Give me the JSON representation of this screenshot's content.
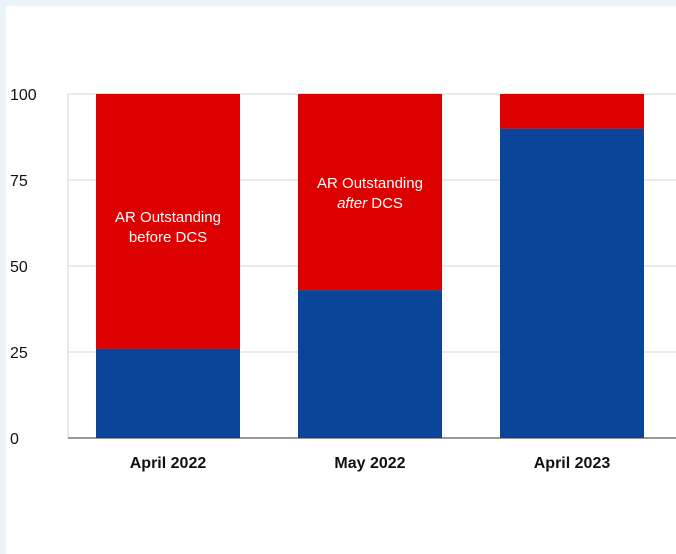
{
  "chart_data": {
    "type": "bar",
    "stacked": true,
    "categories": [
      "April 2022",
      "May 2022",
      "April 2023"
    ],
    "series": [
      {
        "values": [
          26,
          43,
          90
        ],
        "color": "#0b4599"
      },
      {
        "values": [
          74,
          57,
          10
        ],
        "color": "#dc0000"
      }
    ],
    "ylim": [
      0,
      100
    ],
    "yticks": [
      0,
      25,
      50,
      75,
      100
    ],
    "grid": true,
    "annotations": [
      {
        "category": "April 2022",
        "lines": [
          "AR Outstanding",
          "before DCS"
        ]
      },
      {
        "category": "May 2022",
        "lines_rich": [
          [
            {
              "text": "AR Outstanding",
              "italic": false
            }
          ],
          [
            {
              "text": "after",
              "italic": true
            },
            {
              "text": " DCS",
              "italic": false
            }
          ]
        ]
      }
    ]
  }
}
